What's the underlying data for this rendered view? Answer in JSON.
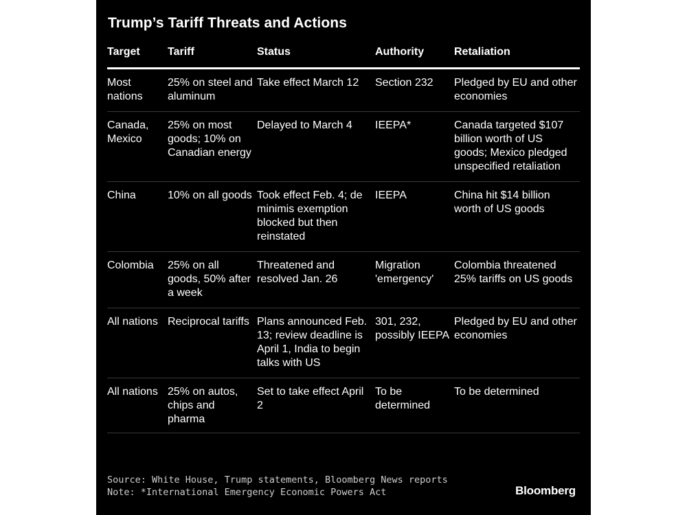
{
  "title": "Trump’s Tariff Threats and Actions",
  "table": {
    "columns": [
      "Target",
      "Tariff",
      "Status",
      "Authority",
      "Retaliation"
    ],
    "rows": [
      {
        "target": "Most nations",
        "tariff": "25% on steel and aluminum",
        "status": "Take effect March 12",
        "authority": "Section 232",
        "retaliation": "Pledged by EU and other economies"
      },
      {
        "target": "Canada, Mexico",
        "tariff": "25% on most goods; 10% on Canadian energy",
        "status": "Delayed to March 4",
        "authority": "IEEPA*",
        "retaliation": "Canada targeted $107 billion worth of US goods; Mexico pledged unspecified retaliation"
      },
      {
        "target": "China",
        "tariff": "10% on all goods",
        "status": "Took effect Feb. 4; de minimis exemption blocked but then reinstated",
        "authority": "IEEPA",
        "retaliation": "China hit $14 billion worth of US goods"
      },
      {
        "target": "Colombia",
        "tariff": "25% on all goods, 50% after a week",
        "status": "Threatened and resolved Jan. 26",
        "authority": "Migration 'emergency'",
        "retaliation": "Colombia threatened 25% tariffs on US goods"
      },
      {
        "target": "All nations",
        "tariff": "Reciprocal tariffs",
        "status": "Plans announced Feb. 13; review deadline is April 1, India to begin talks with US",
        "authority": "301, 232, possibly IEEPA",
        "retaliation": "Pledged by EU and other economies"
      },
      {
        "target": "All nations",
        "tariff": "25% on autos, chips and pharma",
        "status": "Set to take effect April 2",
        "authority": "To be determined",
        "retaliation": "To be determined"
      }
    ]
  },
  "footer": {
    "source": "Source: White House, Trump statements, Bloomberg News reports",
    "note": "Note: *International Emergency Economic Powers Act"
  },
  "brand": "Bloomberg"
}
